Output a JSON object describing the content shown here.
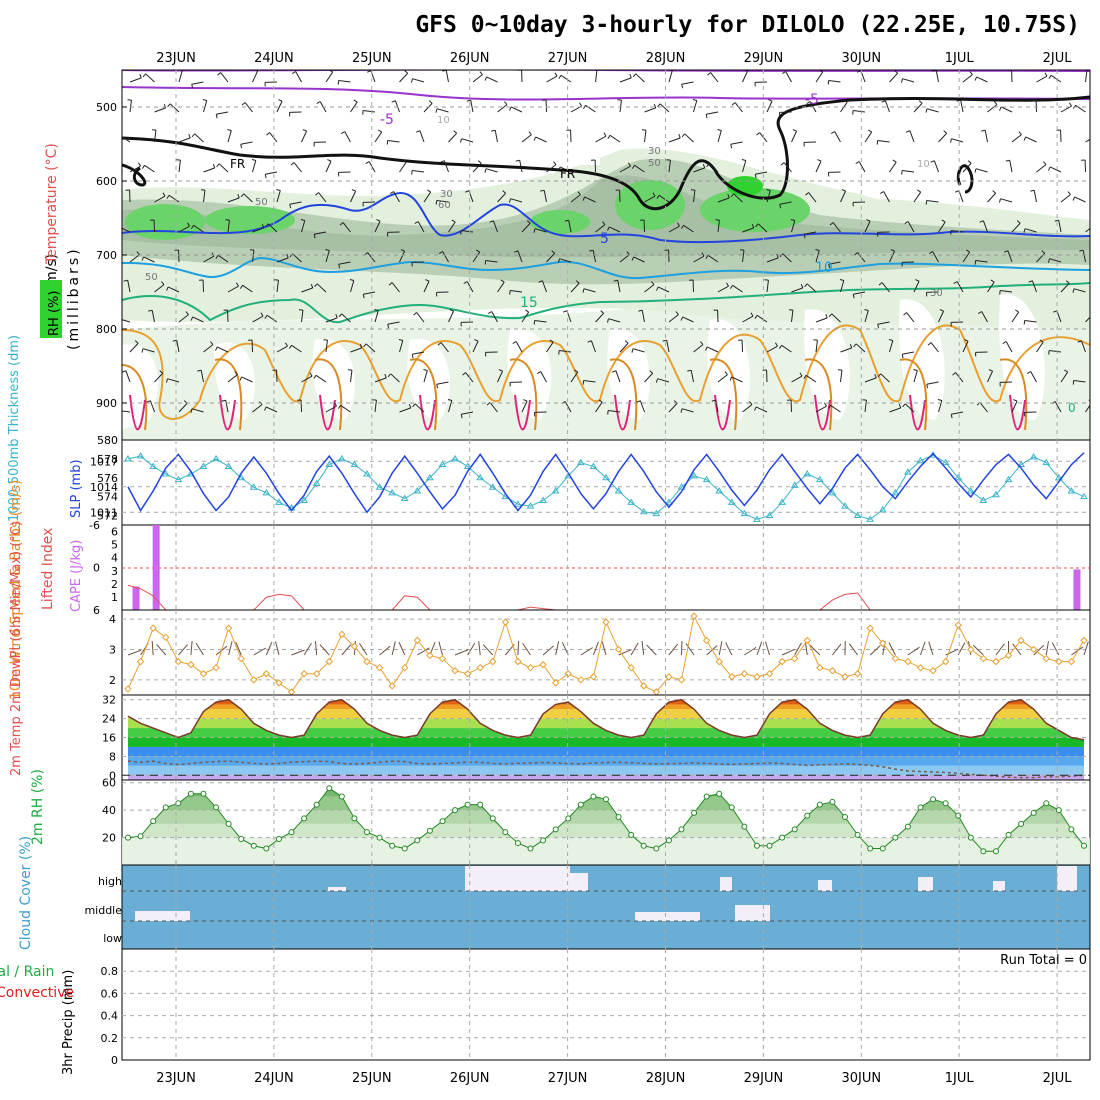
{
  "chart_data": [
    {
      "type": "line",
      "panel": "upper-air",
      "title": "GFS 0~10day 3-hourly for DILOLO (22.25E, 10.75S)",
      "x_dates": [
        "23JUN",
        "24JUN",
        "25JUN",
        "26JUN",
        "27JUN",
        "28JUN",
        "29JUN",
        "30JUN",
        "1JUL",
        "2JUL"
      ],
      "ylabel_wind": "Wind (m/s)",
      "ylabel_temp": "Temperature (°C)",
      "ylabel_rh": "RH (%)",
      "ylabel_pressure": "(millibars)",
      "y_ticks": [
        "500",
        "600",
        "700",
        "800",
        "900"
      ],
      "ylim": [
        950,
        450
      ],
      "contour_labels": [
        "-5",
        "-5",
        "FR",
        "FR",
        "5",
        "10",
        "15",
        "10",
        "30",
        "50",
        "60",
        "30",
        "50",
        "0",
        "50",
        "10",
        "30"
      ]
    },
    {
      "type": "line",
      "panel": "thickness-slp",
      "ylabel_thickness": "1000-500mb Thickness (dm)",
      "ylabel_slp": "SLP (mb)",
      "thickness_ticks": [
        "572",
        "574",
        "576",
        "578",
        "580"
      ],
      "slp_ticks": [
        "1011",
        "1014",
        "1017"
      ],
      "thickness_ylim": [
        571,
        580
      ],
      "slp_ylim": [
        1009.5,
        1019.5
      ],
      "slp": [
        1014,
        1011.2,
        1013.5,
        1016.2,
        1017.8,
        1015.8,
        1013.2,
        1011.2,
        1012.8,
        1015.6,
        1017.5,
        1015.6,
        1013.2,
        1011.2,
        1013.0,
        1015.8,
        1017.6,
        1015.6,
        1013.2,
        1011.0,
        1012.8,
        1015.6,
        1017.6,
        1015.6,
        1013.4,
        1011.4,
        1013.0,
        1015.8,
        1017.8,
        1015.6,
        1013.2,
        1011.2,
        1013.0,
        1015.8,
        1017.8,
        1015.6,
        1013.2,
        1011.4,
        1013.2,
        1015.8,
        1017.8,
        1015.8,
        1013.4,
        1011.6,
        1013.4,
        1016.0,
        1017.8,
        1015.8,
        1013.6,
        1011.8,
        1013.6,
        1016.0,
        1017.8,
        1015.8,
        1013.8,
        1012.0,
        1013.8,
        1016.2,
        1017.8,
        1016.0,
        1014.0,
        1012.6,
        1014.6,
        1016.4,
        1017.9,
        1016.2,
        1014.4,
        1012.8,
        1014.8,
        1016.6,
        1017.8,
        1016.2,
        1014.2,
        1012.6,
        1014.6,
        1016.6,
        1018.0
      ],
      "thickness": [
        578,
        578.3,
        577.2,
        576.4,
        575.8,
        576.4,
        577.2,
        578.0,
        577.2,
        576.0,
        575.0,
        574.4,
        573.4,
        572.8,
        573.6,
        575.4,
        577.4,
        578.0,
        577.4,
        576.4,
        575.0,
        574.4,
        573.8,
        574.6,
        576.0,
        577.4,
        578.0,
        577.2,
        576.0,
        575.0,
        574.0,
        573.2,
        573.0,
        573.6,
        574.6,
        576.2,
        577.6,
        577.2,
        576.0,
        574.6,
        573.4,
        572.4,
        572.2,
        573.4,
        575.0,
        576.2,
        575.8,
        574.6,
        573.4,
        572.2,
        571.6,
        572.0,
        573.4,
        575.2,
        576.4,
        575.8,
        574.4,
        573.0,
        572.0,
        571.6,
        572.6,
        574.4,
        576.6,
        577.8,
        578.4,
        577.6,
        576.0,
        574.6,
        573.6,
        574.2,
        575.8,
        577.4,
        578.2,
        577.6,
        576.0,
        574.6,
        574.0
      ]
    },
    {
      "type": "bar",
      "panel": "stability",
      "ylabel_li": "Lifted Index",
      "ylabel_cape": "CAPE (J/kg)",
      "cape_ticks": [
        "1",
        "2",
        "3",
        "4",
        "5",
        "6"
      ],
      "li_ticks": [
        "6",
        "0",
        "-6"
      ],
      "cape_ylim": [
        0,
        6.5
      ],
      "li_ylim": [
        6,
        -6
      ],
      "cape_bars": [
        {
          "t": 0.6,
          "v": 1.8
        },
        {
          "t": 2.2,
          "v": 6.5
        },
        {
          "t": 75.4,
          "v": 3.1
        }
      ],
      "li": [
        2.5,
        3.0,
        4.0,
        6,
        6,
        6,
        6,
        6,
        6,
        6,
        6,
        4.2,
        3.8,
        4.0,
        6,
        6,
        6,
        6,
        6,
        6,
        6,
        6,
        4.0,
        4.2,
        6,
        6,
        6,
        6,
        6,
        6,
        6,
        6,
        5.6,
        5.8,
        6,
        6,
        6,
        6,
        6,
        6,
        6,
        6,
        6,
        6,
        6,
        6,
        6,
        6,
        6,
        6,
        6,
        6,
        6,
        6,
        6,
        6,
        4.6,
        3.8,
        3.6,
        6,
        6,
        6,
        6,
        6,
        6,
        6,
        6,
        6,
        6,
        6,
        6,
        6,
        6,
        6,
        6,
        6,
        6
      ]
    },
    {
      "type": "line",
      "panel": "10m-wind",
      "ylabel": "10m Wind Speed & Barbs (m/s)",
      "y_ticks": [
        "2",
        "3",
        "4"
      ],
      "ylim": [
        1.5,
        4.3
      ],
      "speed": [
        1.7,
        2.6,
        3.7,
        3.4,
        2.6,
        2.5,
        2.2,
        2.4,
        3.7,
        2.7,
        2.0,
        2.2,
        1.9,
        1.6,
        2.2,
        2.2,
        2.6,
        3.5,
        3.1,
        2.6,
        2.4,
        1.8,
        2.4,
        3.3,
        2.8,
        2.7,
        2.3,
        2.2,
        2.4,
        2.6,
        3.9,
        2.6,
        2.4,
        2.5,
        1.9,
        2.2,
        2.0,
        2.1,
        3.9,
        3.0,
        2.4,
        1.8,
        1.6,
        2.1,
        2.0,
        4.1,
        3.3,
        2.6,
        2.1,
        2.2,
        2.1,
        2.2,
        2.6,
        2.7,
        3.3,
        2.4,
        2.3,
        2.1,
        2.2,
        3.7,
        3.2,
        2.7,
        2.6,
        2.4,
        2.3,
        2.6,
        3.8,
        3.0,
        2.7,
        2.6,
        2.8,
        3.3,
        3.0,
        2.7,
        2.6,
        2.6,
        3.3
      ]
    },
    {
      "type": "area",
      "panel": "2m-temp",
      "ylabel": "2m Temp 2m DewPt (6hr Min/Max) (°C)",
      "y_ticks": [
        "0",
        "8",
        "16",
        "24",
        "32"
      ],
      "ylim": [
        -2,
        34
      ],
      "temp": [
        25,
        22,
        20,
        18,
        16,
        18,
        27,
        31,
        32,
        28,
        22,
        19,
        17,
        16,
        17,
        26,
        31,
        32,
        28,
        22,
        19,
        17,
        16,
        17,
        26,
        31,
        32,
        28,
        22,
        19,
        17,
        16,
        17,
        26,
        30,
        31,
        27,
        22,
        19,
        17,
        16,
        17,
        26,
        31,
        32,
        28,
        22,
        19,
        17,
        16,
        17,
        26,
        31,
        32,
        28,
        22,
        19,
        17,
        16,
        17,
        26,
        31,
        32,
        28,
        22,
        19,
        17,
        16,
        17,
        26,
        31,
        32,
        28,
        22,
        19,
        16,
        15
      ],
      "dewpt": [
        6,
        5.5,
        6,
        5,
        4.5,
        5,
        5.5,
        5.8,
        6,
        5.5,
        5,
        4.8,
        5,
        5.5,
        5.8,
        6,
        5.8,
        5,
        4.8,
        5,
        5.5,
        6,
        5.8,
        5,
        4.8,
        5,
        5.2,
        5.6,
        5.5,
        5,
        4.8,
        5.1,
        5.2,
        5.4,
        5.2,
        5,
        4.8,
        5.2,
        5.4,
        5.5,
        5.3,
        5,
        4.8,
        4.9,
        5,
        5.2,
        5,
        4.8,
        4.6,
        4.8,
        5,
        5.2,
        5,
        4.6,
        4.2,
        4.4,
        4.6,
        4.8,
        4.6,
        4.2,
        3.6,
        2.6,
        1.8,
        1.6,
        1.4,
        1.2,
        0.8,
        0.4,
        0,
        -0.4,
        -0.8,
        -1,
        -1,
        -0.6,
        -0.6,
        -0.4,
        0
      ]
    },
    {
      "type": "area",
      "panel": "2m-rh",
      "ylabel": "2m RH (%)",
      "y_ticks": [
        "20",
        "40",
        "60"
      ],
      "ylim": [
        0,
        62
      ],
      "rh": [
        20,
        21,
        32,
        42,
        45,
        52,
        52,
        42,
        30,
        19,
        14,
        12,
        19,
        24,
        34,
        44,
        56,
        50,
        34,
        24,
        20,
        14,
        12,
        18,
        25,
        32,
        40,
        44,
        44,
        34,
        24,
        16,
        12,
        18,
        26,
        34,
        44,
        50,
        48,
        35,
        22,
        14,
        12,
        18,
        26,
        38,
        50,
        52,
        42,
        28,
        14,
        14,
        20,
        26,
        36,
        44,
        46,
        35,
        22,
        12,
        12,
        20,
        28,
        42,
        48,
        45,
        36,
        20,
        10,
        10,
        22,
        30,
        38,
        45,
        40,
        26,
        14
      ]
    },
    {
      "type": "area",
      "panel": "cloud-cover",
      "ylabel": "Cloud Cover (%)",
      "y_ticks": [
        "high",
        "middle",
        "low"
      ]
    },
    {
      "type": "bar",
      "panel": "precip",
      "ylabel": "3hr Precip (mm)",
      "legend": "Total / Rain Convective",
      "y_ticks": [
        "0",
        "0.2",
        "0.4",
        "0.6",
        "0.8"
      ],
      "ylim": [
        0,
        1
      ],
      "values": [],
      "run_total": "Run Total = 0"
    }
  ]
}
